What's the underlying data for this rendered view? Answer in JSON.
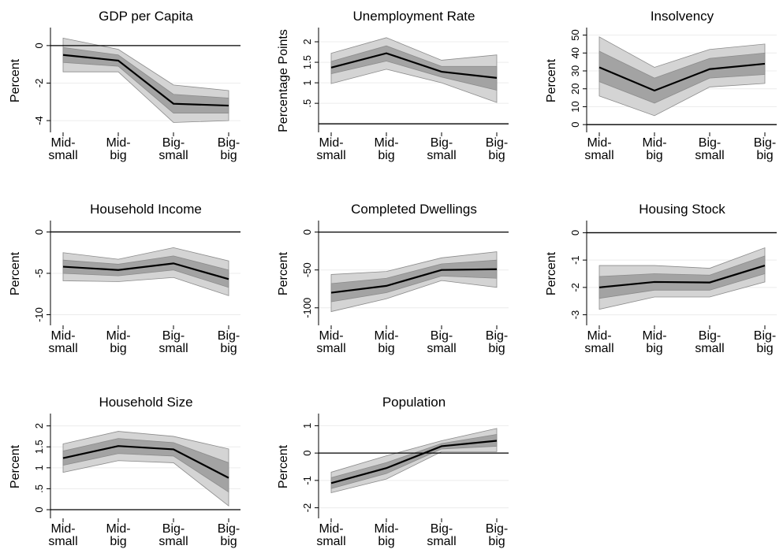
{
  "chart_data": [
    {
      "type": "line",
      "title": "GDP per Capita",
      "ylabel": "Percent",
      "categories": [
        "Mid-\nsmall",
        "Mid-\nbig",
        "Big-\nsmall",
        "Big-\nbig"
      ],
      "values": [
        -0.5,
        -0.8,
        -3.1,
        -3.2
      ],
      "color": "#000000",
      "bands": [
        {
          "upper": [
            0.4,
            -0.2,
            -2.1,
            -2.4
          ],
          "lower": [
            -1.4,
            -1.4,
            -4.1,
            -4.0
          ],
          "color": "#d4d4d4"
        },
        {
          "upper": [
            -0.1,
            -0.5,
            -2.6,
            -2.8
          ],
          "lower": [
            -0.9,
            -1.1,
            -3.6,
            -3.6
          ],
          "color": "#a3a3a3"
        }
      ],
      "ref_line": 0,
      "ylim": [
        -4.5,
        0.75
      ],
      "yticks": [
        -4,
        -2,
        0
      ],
      "grid": true
    },
    {
      "type": "line",
      "title": "Unemployment Rate",
      "ylabel": "Percentage Points",
      "categories": [
        "Mid-\nsmall",
        "Mid-\nbig",
        "Big-\nsmall",
        "Big-\nbig"
      ],
      "values": [
        1.37,
        1.72,
        1.27,
        1.12
      ],
      "color": "#000000",
      "bands": [
        {
          "upper": [
            1.72,
            2.1,
            1.55,
            1.68
          ],
          "lower": [
            0.98,
            1.33,
            1.0,
            0.52
          ],
          "color": "#d4d4d4"
        },
        {
          "upper": [
            1.52,
            1.9,
            1.4,
            1.4
          ],
          "lower": [
            1.22,
            1.53,
            1.14,
            0.82
          ],
          "color": "#a3a3a3"
        }
      ],
      "ref_line": 0,
      "ylim": [
        -0.15,
        2.25
      ],
      "yticks": [
        {
          "value": 0.5,
          "label": ".5"
        },
        1,
        1.5,
        2
      ],
      "grid": true
    },
    {
      "type": "line",
      "title": "Insolvency",
      "ylabel": "Percent",
      "categories": [
        "Mid-\nsmall",
        "Mid-\nbig",
        "Big-\nsmall",
        "Big-\nbig"
      ],
      "values": [
        32,
        19,
        31,
        34
      ],
      "color": "#000000",
      "bands": [
        {
          "upper": [
            49,
            32,
            42,
            45
          ],
          "lower": [
            16,
            5,
            21,
            23
          ],
          "color": "#d4d4d4"
        },
        {
          "upper": [
            41,
            26,
            37,
            40
          ],
          "lower": [
            24,
            12,
            26,
            28
          ],
          "color": "#a3a3a3"
        }
      ],
      "ref_line": 0,
      "ylim": [
        -3,
        52
      ],
      "yticks": [
        0,
        10,
        20,
        30,
        40,
        50
      ],
      "grid": true
    },
    {
      "type": "line",
      "title": "Household Income",
      "ylabel": "Percent",
      "categories": [
        "Mid-\nsmall",
        "Mid-\nbig",
        "Big-\nsmall",
        "Big-\nbig"
      ],
      "values": [
        -4.2,
        -4.6,
        -3.8,
        -5.7
      ],
      "color": "#000000",
      "bands": [
        {
          "upper": [
            -2.5,
            -3.3,
            -1.9,
            -3.5
          ],
          "lower": [
            -5.9,
            -6.0,
            -5.5,
            -7.7
          ],
          "color": "#d4d4d4"
        },
        {
          "upper": [
            -3.4,
            -3.9,
            -2.9,
            -4.6
          ],
          "lower": [
            -5.0,
            -5.3,
            -4.6,
            -6.7
          ],
          "color": "#a3a3a3"
        }
      ],
      "ref_line": 0,
      "ylim": [
        -11,
        0.9
      ],
      "yticks": [
        -10,
        -5,
        0
      ],
      "grid": true
    },
    {
      "type": "line",
      "title": "Completed Dwellings",
      "ylabel": "Percent",
      "categories": [
        "Mid-\nsmall",
        "Mid-\nbig",
        "Big-\nsmall",
        "Big-\nbig"
      ],
      "values": [
        -80,
        -71,
        -50,
        -49
      ],
      "color": "#000000",
      "bands": [
        {
          "upper": [
            -56,
            -52,
            -34,
            -26
          ],
          "lower": [
            -105,
            -88,
            -64,
            -73
          ],
          "color": "#d4d4d4"
        },
        {
          "upper": [
            -68,
            -61,
            -42,
            -37
          ],
          "lower": [
            -92,
            -80,
            -58,
            -61
          ],
          "color": "#a3a3a3"
        }
      ],
      "ref_line": 0,
      "ylim": [
        -120,
        10
      ],
      "yticks": [
        -100,
        -50,
        0
      ],
      "grid": true
    },
    {
      "type": "line",
      "title": "Housing Stock",
      "ylabel": "Percent",
      "categories": [
        "Mid-\nsmall",
        "Mid-\nbig",
        "Big-\nsmall",
        "Big-\nbig"
      ],
      "values": [
        -2.0,
        -1.8,
        -1.82,
        -1.2
      ],
      "color": "#000000",
      "bands": [
        {
          "upper": [
            -1.2,
            -1.2,
            -1.3,
            -0.55
          ],
          "lower": [
            -2.8,
            -2.35,
            -2.35,
            -1.8
          ],
          "color": "#d4d4d4"
        },
        {
          "upper": [
            -1.6,
            -1.5,
            -1.55,
            -0.85
          ],
          "lower": [
            -2.4,
            -2.1,
            -2.1,
            -1.5
          ],
          "color": "#a3a3a3"
        }
      ],
      "ref_line": 0,
      "ylim": [
        -3.3,
        0.3
      ],
      "yticks": [
        -3,
        -2,
        -1,
        0
      ],
      "grid": true
    },
    {
      "type": "line",
      "title": "Household Size",
      "ylabel": "Percent",
      "categories": [
        "Mid-\nsmall",
        "Mid-\nbig",
        "Big-\nsmall",
        "Big-\nbig"
      ],
      "values": [
        1.23,
        1.52,
        1.44,
        0.76
      ],
      "color": "#000000",
      "bands": [
        {
          "upper": [
            1.57,
            1.87,
            1.75,
            1.45
          ],
          "lower": [
            0.89,
            1.17,
            1.12,
            0.09
          ],
          "color": "#d4d4d4"
        },
        {
          "upper": [
            1.4,
            1.7,
            1.6,
            1.12
          ],
          "lower": [
            1.06,
            1.34,
            1.28,
            0.42
          ],
          "color": "#a3a3a3"
        }
      ],
      "ref_line": 0,
      "ylim": [
        -0.15,
        2.2
      ],
      "yticks": [
        0,
        {
          "value": 0.5,
          "label": ".5"
        },
        1,
        1.5,
        2
      ],
      "grid": true
    },
    {
      "type": "line",
      "title": "Population",
      "ylabel": "Percent",
      "categories": [
        "Mid-\nsmall",
        "Mid-\nbig",
        "Big-\nsmall",
        "Big-\nbig"
      ],
      "values": [
        -1.1,
        -0.55,
        0.25,
        0.45
      ],
      "color": "#000000",
      "bands": [
        {
          "upper": [
            -0.7,
            -0.1,
            0.45,
            0.9
          ],
          "lower": [
            -1.45,
            -0.95,
            0.05,
            0.05
          ],
          "color": "#d4d4d4"
        },
        {
          "upper": [
            -0.9,
            -0.35,
            0.35,
            0.68
          ],
          "lower": [
            -1.3,
            -0.75,
            0.15,
            0.25
          ],
          "color": "#a3a3a3"
        }
      ],
      "ref_line": 0,
      "ylim": [
        -2.3,
        1.3
      ],
      "yticks": [
        -2,
        -1,
        0,
        1
      ],
      "grid": true
    }
  ]
}
